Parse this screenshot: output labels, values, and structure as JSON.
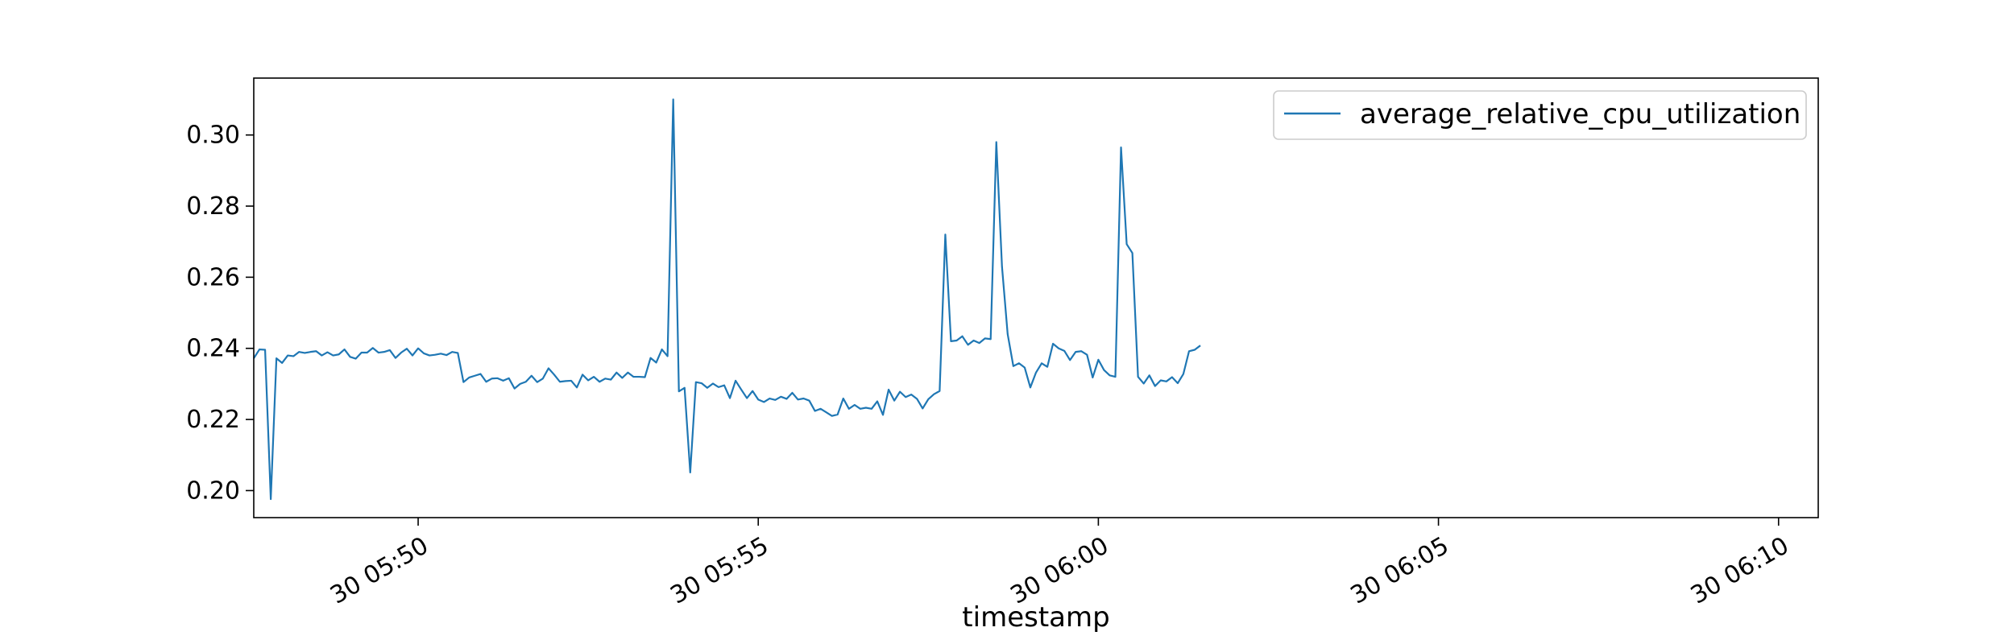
{
  "chart_data": {
    "type": "line",
    "title": "",
    "xlabel": "timestamp",
    "ylabel": "",
    "x_axis_type": "datetime",
    "x_start": "30 05:47:35",
    "x_step_seconds": 5,
    "xlim": [
      "30 05:47:35",
      "30 06:10:35"
    ],
    "ylim": [
      0.1924,
      0.316
    ],
    "grid": false,
    "legend": {
      "placement": "top-right",
      "entries": [
        "average_relative_cpu_utilization"
      ]
    },
    "x_ticks": [
      {
        "time": "30 05:50:00",
        "label": "30 05:50"
      },
      {
        "time": "30 05:55:00",
        "label": "30 05:55"
      },
      {
        "time": "30 06:00:00",
        "label": "30 06:00"
      },
      {
        "time": "30 06:05:00",
        "label": "30 06:05"
      },
      {
        "time": "30 06:10:00",
        "label": "30 06:10"
      }
    ],
    "y_ticks": [
      {
        "value": 0.2,
        "label": "0.20"
      },
      {
        "value": 0.22,
        "label": "0.22"
      },
      {
        "value": 0.24,
        "label": "0.24"
      },
      {
        "value": 0.26,
        "label": "0.26"
      },
      {
        "value": 0.28,
        "label": "0.28"
      },
      {
        "value": 0.3,
        "label": "0.30"
      }
    ],
    "series": [
      {
        "name": "average_relative_cpu_utilization",
        "color": "#1f77b4",
        "values": [
          0.2372,
          0.2397,
          0.2396,
          0.1976,
          0.2372,
          0.2359,
          0.238,
          0.2378,
          0.239,
          0.2387,
          0.239,
          0.2392,
          0.238,
          0.2389,
          0.238,
          0.2383,
          0.2397,
          0.2376,
          0.2371,
          0.2388,
          0.2388,
          0.2401,
          0.2388,
          0.239,
          0.2395,
          0.2373,
          0.2388,
          0.2399,
          0.238,
          0.24,
          0.2386,
          0.238,
          0.2382,
          0.2385,
          0.2381,
          0.239,
          0.2387,
          0.2305,
          0.2318,
          0.2323,
          0.2328,
          0.2306,
          0.2315,
          0.2316,
          0.2309,
          0.2316,
          0.2287,
          0.23,
          0.2306,
          0.2323,
          0.2305,
          0.2315,
          0.2344,
          0.2326,
          0.2306,
          0.2308,
          0.2309,
          0.229,
          0.2326,
          0.231,
          0.232,
          0.2306,
          0.2315,
          0.2312,
          0.2332,
          0.2317,
          0.2332,
          0.232,
          0.232,
          0.2319,
          0.2373,
          0.236,
          0.2397,
          0.2378,
          0.31,
          0.2279,
          0.2289,
          0.2051,
          0.2305,
          0.2302,
          0.2289,
          0.2301,
          0.2291,
          0.2296,
          0.226,
          0.2309,
          0.2284,
          0.226,
          0.228,
          0.2256,
          0.2249,
          0.2259,
          0.2255,
          0.2264,
          0.2258,
          0.2275,
          0.2256,
          0.2259,
          0.2253,
          0.2224,
          0.223,
          0.222,
          0.221,
          0.2214,
          0.2259,
          0.223,
          0.2241,
          0.223,
          0.2233,
          0.223,
          0.2251,
          0.2213,
          0.2284,
          0.2253,
          0.2278,
          0.2263,
          0.227,
          0.2258,
          0.2231,
          0.2257,
          0.2271,
          0.228,
          0.272,
          0.242,
          0.2422,
          0.2434,
          0.241,
          0.2422,
          0.2415,
          0.2428,
          0.2426,
          0.298,
          0.263,
          0.244,
          0.235,
          0.2358,
          0.2346,
          0.229,
          0.2332,
          0.2358,
          0.2348,
          0.2413,
          0.24,
          0.2393,
          0.2367,
          0.239,
          0.2392,
          0.2382,
          0.2318,
          0.2368,
          0.2339,
          0.2324,
          0.232,
          0.2965,
          0.2693,
          0.2668,
          0.232,
          0.2301,
          0.2324,
          0.2294,
          0.231,
          0.2307,
          0.2319,
          0.2302,
          0.2328,
          0.2392,
          0.2396,
          0.2408
        ]
      }
    ]
  }
}
